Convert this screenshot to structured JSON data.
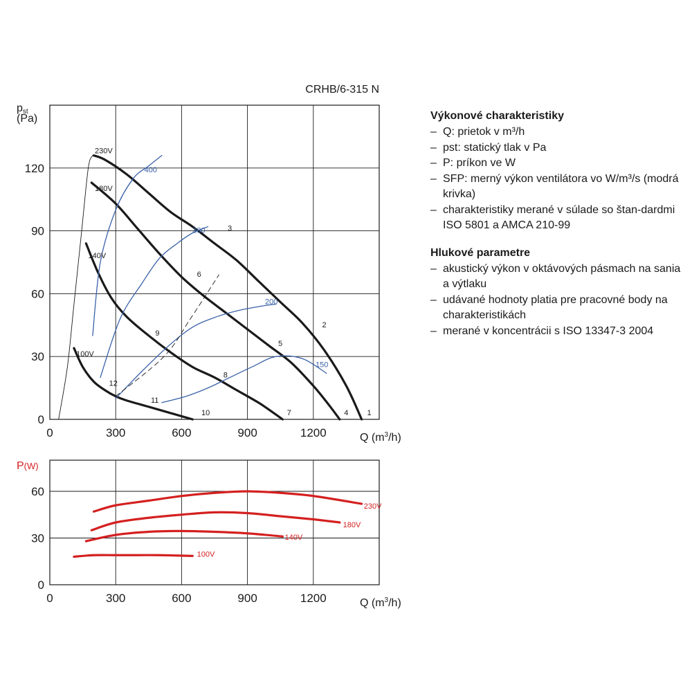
{
  "model": "CRHB/6-315 N",
  "legend": {
    "performance_title": "Výkonové charakteristiky",
    "performance_items": [
      "Q: prietok v m³/h",
      "pst: statický tlak v Pa",
      "P: príkon ve W",
      "SFP: merný výkon ventilátora vo W/m³/s (modrá krivka)",
      "charakteristiky merané v súlade so štan-dardmi ISO 5801 a AMCA 210-99"
    ],
    "noise_title": "Hlukové parametre",
    "noise_items": [
      "akustický výkon v oktávových pásmach na sania a výtlaku",
      "udávané hodnoty platia pre pracovné body na charakteristikách",
      "merané v koncentrácii s ISO 13347-3 2004"
    ]
  },
  "chart_data": [
    {
      "type": "line",
      "ylabel": "pst (Pa)",
      "xlabel": "Q (m³/h)",
      "xlim": [
        0,
        1500
      ],
      "ylim": [
        0,
        150
      ],
      "xticks": [
        0,
        300,
        600,
        900,
        1200
      ],
      "yticks": [
        0,
        30,
        60,
        90,
        120
      ],
      "grid": true,
      "series": [
        {
          "name": "230V",
          "color": "#1a1a1a",
          "x": [
            200,
            250,
            350,
            450,
            550,
            650,
            750,
            850,
            950,
            1050,
            1150,
            1250,
            1350,
            1420
          ],
          "y": [
            126,
            124,
            117,
            108,
            99,
            92,
            84,
            76,
            66,
            56,
            46,
            33,
            16,
            0
          ]
        },
        {
          "name": "180V",
          "color": "#1a1a1a",
          "x": [
            190,
            300,
            400,
            500,
            600,
            700,
            800,
            900,
            1000,
            1100,
            1200,
            1270,
            1320
          ],
          "y": [
            113,
            103,
            91,
            79,
            68,
            59,
            51,
            43,
            35,
            27,
            16,
            7,
            0
          ]
        },
        {
          "name": "140V",
          "color": "#1a1a1a",
          "x": [
            165,
            220,
            280,
            350,
            450,
            550,
            650,
            750,
            850,
            950,
            1020,
            1060
          ],
          "y": [
            84,
            70,
            58,
            49,
            40,
            32,
            25,
            20,
            14,
            8,
            3,
            0
          ]
        },
        {
          "name": "100V",
          "color": "#1a1a1a",
          "x": [
            110,
            150,
            200,
            250,
            300,
            350,
            450,
            550,
            650
          ],
          "y": [
            34,
            25,
            18,
            14,
            11,
            9,
            6,
            3,
            0
          ]
        },
        {
          "name": "400",
          "color": "#3a62a8",
          "x": [
            195,
            230,
            300,
            380,
            450,
            510
          ],
          "y": [
            40,
            75,
            100,
            115,
            121,
            126
          ]
        },
        {
          "name": "300",
          "color": "#3a62a8",
          "x": [
            230,
            320,
            420,
            500,
            580,
            650,
            720
          ],
          "y": [
            20,
            48,
            65,
            77,
            84,
            89,
            92
          ]
        },
        {
          "name": "200",
          "color": "#3a62a8",
          "x": [
            300,
            420,
            540,
            650,
            760,
            860,
            960,
            1030
          ],
          "y": [
            10,
            23,
            35,
            44,
            49,
            52,
            54,
            55
          ]
        },
        {
          "name": "150",
          "color": "#3a62a8",
          "x": [
            510,
            620,
            720,
            820,
            920,
            1030,
            1150,
            1260
          ],
          "y": [
            8,
            11,
            15,
            20,
            25,
            30,
            29,
            22
          ]
        },
        {
          "name": "Q-100V",
          "color": "#1a1a1a",
          "x": [
            195,
            175,
            145,
            110,
            80,
            40
          ],
          "y": [
            126,
            120,
            90,
            55,
            25,
            0
          ]
        },
        {
          "name": "Q-130V",
          "color": "#1a1a1a",
          "dashed": true,
          "x": [
            300,
            520,
            640,
            770
          ],
          "y": [
            11,
            30,
            48,
            69
          ]
        }
      ],
      "annotations": [
        {
          "text": "230V",
          "x": 205,
          "y": 127
        },
        {
          "text": "180V",
          "x": 205,
          "y": 109
        },
        {
          "text": "140V",
          "x": 175,
          "y": 77
        },
        {
          "text": "100V",
          "x": 120,
          "y": 30
        },
        {
          "text": "400",
          "x": 430,
          "y": 118
        },
        {
          "text": "300",
          "x": 650,
          "y": 89
        },
        {
          "text": "200",
          "x": 980,
          "y": 55
        },
        {
          "text": "150",
          "x": 1210,
          "y": 25
        },
        {
          "text": "1",
          "x": 1445,
          "y": 2
        },
        {
          "text": "2",
          "x": 1240,
          "y": 44
        },
        {
          "text": "3",
          "x": 810,
          "y": 90
        },
        {
          "text": "4",
          "x": 1340,
          "y": 2
        },
        {
          "text": "5",
          "x": 1040,
          "y": 35
        },
        {
          "text": "6",
          "x": 670,
          "y": 68
        },
        {
          "text": "7",
          "x": 1080,
          "y": 2
        },
        {
          "text": "8",
          "x": 790,
          "y": 20
        },
        {
          "text": "9",
          "x": 480,
          "y": 40
        },
        {
          "text": "10",
          "x": 690,
          "y": 2
        },
        {
          "text": "11",
          "x": 460,
          "y": 8
        },
        {
          "text": "12",
          "x": 270,
          "y": 16
        }
      ]
    },
    {
      "type": "line",
      "ylabel": "P(W)",
      "xlabel": "Q (m³/h)",
      "xlim": [
        0,
        1500
      ],
      "ylim": [
        0,
        80
      ],
      "xticks": [
        0,
        300,
        600,
        900,
        1200
      ],
      "yticks": [
        0,
        30,
        60
      ],
      "grid": true,
      "series": [
        {
          "name": "230V",
          "color": "#d42020",
          "x": [
            200,
            300,
            450,
            600,
            750,
            900,
            1050,
            1200,
            1420
          ],
          "y": [
            47,
            51,
            54,
            57,
            59,
            60,
            59,
            57,
            52
          ]
        },
        {
          "name": "180V",
          "color": "#d42020",
          "x": [
            190,
            300,
            450,
            600,
            750,
            900,
            1050,
            1200,
            1320
          ],
          "y": [
            35,
            40,
            43,
            45,
            46.5,
            46,
            44,
            42,
            40
          ]
        },
        {
          "name": "140V",
          "color": "#d42020",
          "x": [
            165,
            300,
            450,
            600,
            750,
            900,
            1060
          ],
          "y": [
            28,
            32,
            34,
            34.5,
            34,
            33,
            31
          ]
        },
        {
          "name": "100V",
          "color": "#d42020",
          "x": [
            110,
            200,
            300,
            400,
            500,
            650
          ],
          "y": [
            18,
            19,
            19,
            19,
            19,
            18.5
          ]
        }
      ],
      "annotations": [
        {
          "text": "230V",
          "x": 1430,
          "y": 49
        },
        {
          "text": "180V",
          "x": 1335,
          "y": 37
        },
        {
          "text": "140V",
          "x": 1070,
          "y": 29
        },
        {
          "text": "100V",
          "x": 670,
          "y": 18
        }
      ]
    }
  ]
}
